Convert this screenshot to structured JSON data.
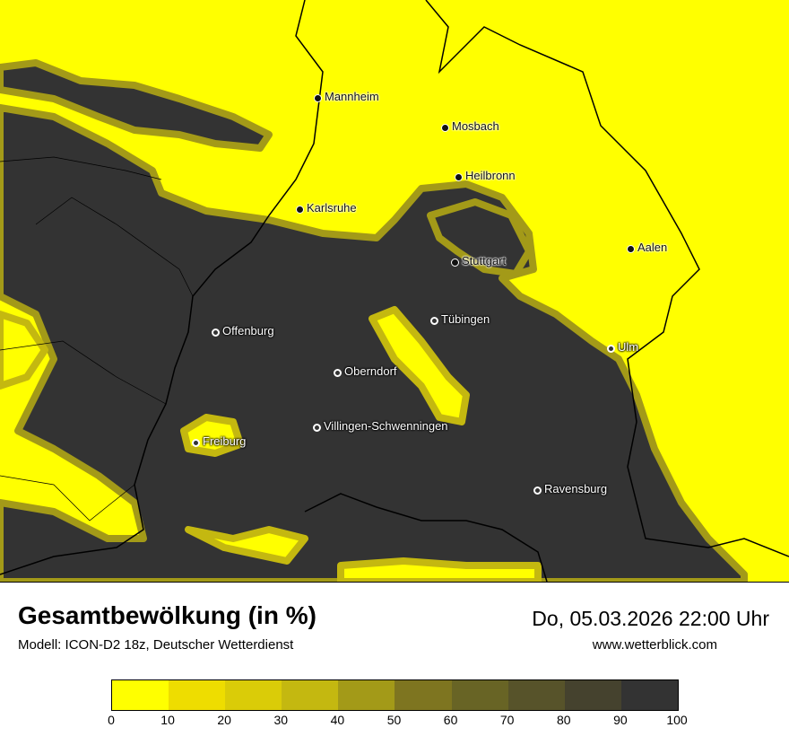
{
  "title": "Gesamtbewölkung (in %)",
  "subtitle": "Modell: ICON-D2 18z, Deutscher Wetterdienst",
  "datetime": "Do, 05.03.2026 22:00 Uhr",
  "website": "www.wetterblick.com",
  "legend": {
    "ticks": [
      "0",
      "10",
      "20",
      "30",
      "40",
      "50",
      "60",
      "70",
      "80",
      "90",
      "100"
    ],
    "colors": [
      "#ffff00",
      "#eedd00",
      "#dacc08",
      "#c4b810",
      "#a39a18",
      "#7e7520",
      "#686425",
      "#57532a",
      "#45422e",
      "#333333"
    ]
  },
  "cities": [
    {
      "name": "Mannheim",
      "style": "light"
    },
    {
      "name": "Mosbach",
      "style": "light"
    },
    {
      "name": "Heilbronn",
      "style": "light"
    },
    {
      "name": "Karlsruhe",
      "style": "light"
    },
    {
      "name": "Aalen",
      "style": "light"
    },
    {
      "name": "Stuttgart",
      "style": "light"
    },
    {
      "name": "Tübingen",
      "style": "dark"
    },
    {
      "name": "Ulm",
      "style": "dark"
    },
    {
      "name": "Offenburg",
      "style": "dark"
    },
    {
      "name": "Oberndorf",
      "style": "dark"
    },
    {
      "name": "Villingen-Schwenningen",
      "style": "dark"
    },
    {
      "name": "Freiburg",
      "style": "dark"
    },
    {
      "name": "Ravensburg",
      "style": "dark"
    }
  ]
}
